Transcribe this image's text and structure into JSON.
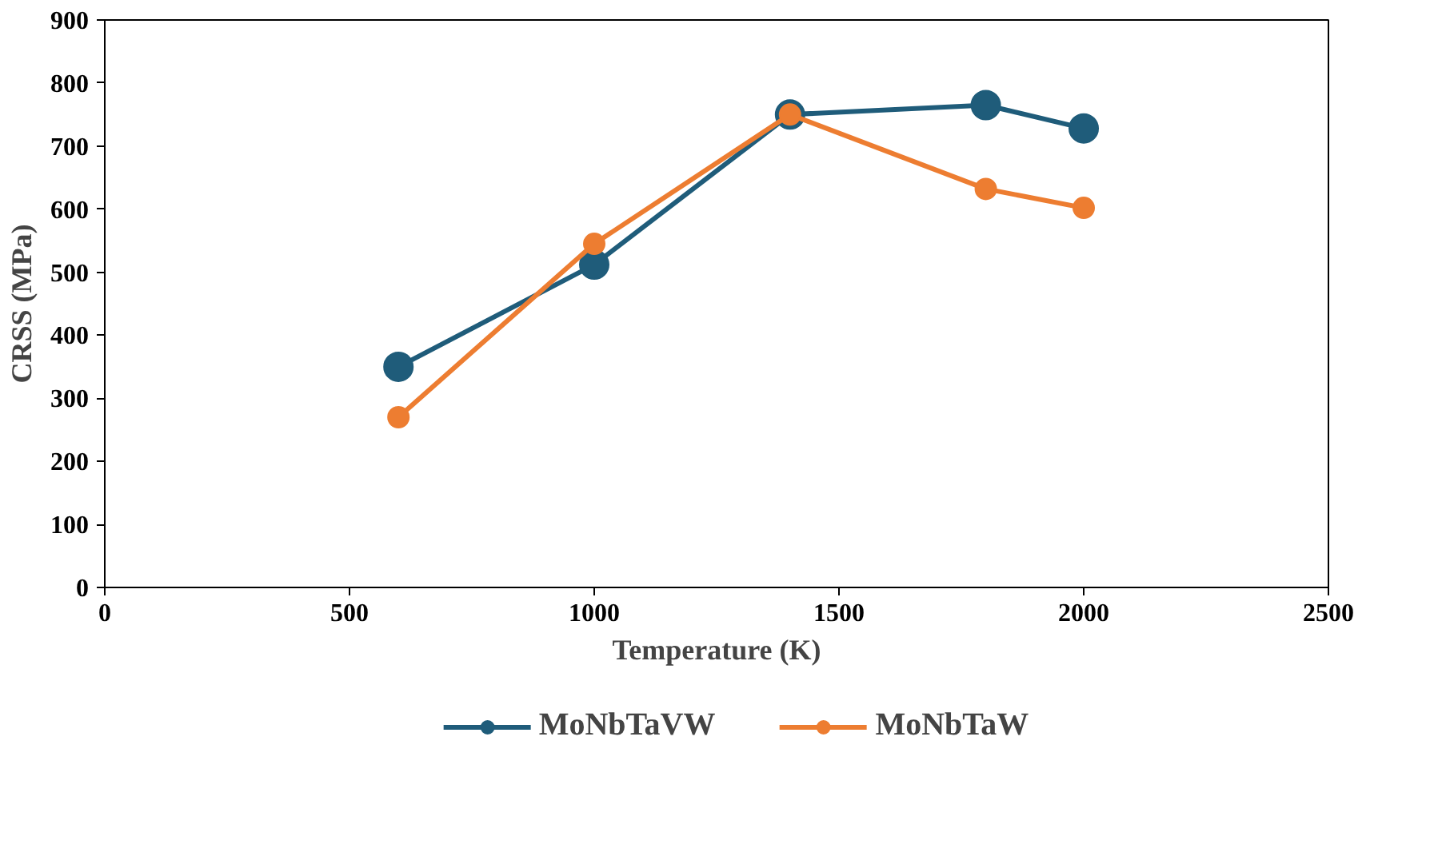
{
  "chart_data": {
    "type": "line",
    "xlabel": "Temperature (K)",
    "ylabel": "CRSS (MPa)",
    "x": [
      600,
      1000,
      1400,
      1800,
      2000
    ],
    "series": [
      {
        "name": "MoNbTaVW",
        "color": "#1f5c7a",
        "values": [
          350,
          512,
          750,
          765,
          728
        ]
      },
      {
        "name": "MoNbTaW",
        "color": "#ed7d31",
        "values": [
          270,
          545,
          750,
          632,
          602
        ]
      }
    ],
    "xlim": [
      0,
      2500
    ],
    "xticks": [
      0,
      500,
      1000,
      1500,
      2000,
      2500
    ],
    "ylim": [
      0,
      900
    ],
    "yticks": [
      0,
      100,
      200,
      300,
      400,
      500,
      600,
      700,
      800,
      900
    ],
    "grid": false,
    "legend": "bottom",
    "marker": "circle",
    "line_style": "solid"
  }
}
